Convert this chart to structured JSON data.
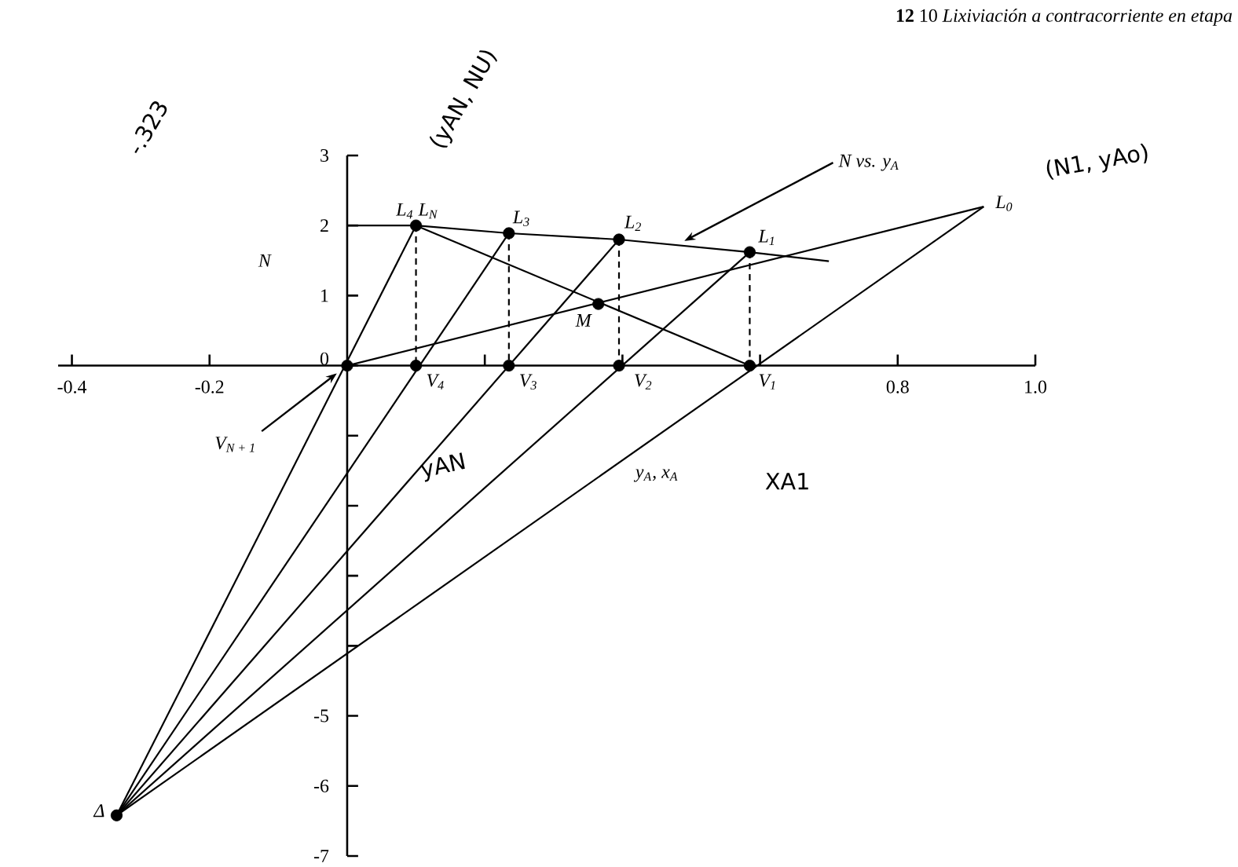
{
  "chart_data": {
    "type": "line",
    "title": "**12** 10 *Lixiviación a contracorriente en etapa*",
    "xlabel": "y$_{A}$, x$_{A}$",
    "ylabel": "N",
    "xlim": [
      -0.42,
      1.0
    ],
    "ylim": [
      -7,
      3
    ],
    "xticks": [
      -0.4,
      -0.2,
      {
        "value": 0.2,
        "label": null
      },
      {
        "value": 0.4,
        "label": null
      },
      {
        "value": 0.6,
        "label": null
      },
      0.8,
      {
        "value": 1.0,
        "label": "1.0"
      }
    ],
    "yticks": [
      -7,
      -6,
      -5,
      {
        "value": -4,
        "label": null
      },
      {
        "value": -3,
        "label": null
      },
      {
        "value": -2,
        "label": null
      },
      {
        "value": -1,
        "label": null
      },
      0,
      1,
      2,
      3
    ],
    "series": [
      {
        "color": "#000000",
        "x": [
          0,
          0.1,
          0.235,
          0.395,
          0.585,
          0.7
        ],
        "values": [
          2.0,
          2.0,
          1.89,
          1.8,
          1.62,
          1.49
        ]
      },
      {
        "color": "#000000",
        "x": [
          0,
          0.925
        ],
        "values": [
          0,
          2.27
        ]
      },
      {
        "color": "#000000",
        "x": [
          0.1,
          0.585
        ],
        "values": [
          2.0,
          0
        ]
      },
      {
        "color": "#000000",
        "x": [
          -0.335,
          0.925
        ],
        "values": [
          -6.42,
          2.27
        ]
      },
      {
        "color": "#000000",
        "x": [
          -0.335,
          0.585
        ],
        "values": [
          -6.42,
          1.62
        ]
      },
      {
        "color": "#000000",
        "x": [
          -0.335,
          0.395
        ],
        "values": [
          -6.42,
          1.8
        ]
      },
      {
        "color": "#000000",
        "x": [
          -0.335,
          0.235
        ],
        "values": [
          -6.42,
          1.89
        ]
      },
      {
        "color": "#000000",
        "x": [
          -0.335,
          0.1
        ],
        "values": [
          -6.42,
          2.0
        ]
      },
      {
        "color": "#000000",
        "line_style": "dashed",
        "x": [
          0.1,
          0.1
        ],
        "values": [
          2.0,
          0
        ]
      },
      {
        "color": "#000000",
        "line_style": "dashed",
        "x": [
          0.235,
          0.235
        ],
        "values": [
          1.89,
          0
        ]
      },
      {
        "color": "#000000",
        "line_style": "dashed",
        "x": [
          0.395,
          0.395
        ],
        "values": [
          1.8,
          0
        ]
      },
      {
        "color": "#000000",
        "line_style": "dashed",
        "x": [
          0.585,
          0.585
        ],
        "values": [
          1.62,
          0
        ]
      },
      {
        "type": "scatter",
        "color": "#000000",
        "marker": "circle",
        "x": [
          0.1,
          0.235,
          0.395,
          0.585,
          0.365,
          0,
          0.1,
          0.235,
          0.395,
          0.585,
          -0.335
        ],
        "values": [
          2.0,
          1.89,
          1.8,
          1.62,
          0.88,
          0,
          0,
          0,
          0,
          0,
          -6.42
        ]
      }
    ],
    "annotations": [
      {
        "text": "L$_{4}$",
        "x": 0.1,
        "y": 2.0
      },
      {
        "text": "L$_{N}$",
        "x": 0.1,
        "y": 2.0
      },
      {
        "text": "L$_{3}$",
        "x": 0.235,
        "y": 1.89
      },
      {
        "text": "L$_{2}$",
        "x": 0.395,
        "y": 1.8
      },
      {
        "text": "L$_{1}$",
        "x": 0.585,
        "y": 1.62
      },
      {
        "text": "L$_{0}$",
        "x": 0.925,
        "y": 2.27
      },
      {
        "text": "M",
        "x": 0.365,
        "y": 0.88
      },
      {
        "text": "V$_{4}$",
        "x": 0.1,
        "y": 0
      },
      {
        "text": "V$_{3}$",
        "x": 0.235,
        "y": 0
      },
      {
        "text": "V$_{2}$",
        "x": 0.395,
        "y": 0
      },
      {
        "text": "V$_{1}$",
        "x": 0.585,
        "y": 0
      },
      {
        "text": "V$_{N + 1}$",
        "x": -0.015,
        "y": -0.11
      },
      {
        "text": "Δ",
        "x": -0.335,
        "y": -6.42
      },
      {
        "text": "N vs. y$_{A}$",
        "x": 0.49,
        "y": 1.78
      },
      "-.323",
      "(yAN, NU)",
      "(N1, yAo)",
      "yAN",
      "XA1"
    ]
  }
}
